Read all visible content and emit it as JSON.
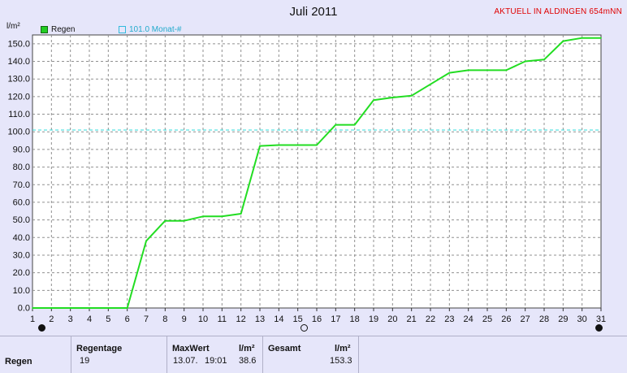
{
  "header": {
    "title": "Juli 2011",
    "status": "AKTUELL IN ALDINGEN 654mNN",
    "unit": "l/m²"
  },
  "legend": {
    "regen_label": "Regen",
    "avg_label": "101.0 Monat-#"
  },
  "colors": {
    "series": "#22dd22",
    "reference": "#33dddd",
    "grid": "#909090",
    "plot_bg": "#ffffff"
  },
  "chart_data": {
    "type": "line",
    "title": "Juli 2011",
    "ylabel": "l/m²",
    "xlim": [
      1,
      31
    ],
    "ylim": [
      0,
      155
    ],
    "x_ticks": [
      1,
      2,
      3,
      4,
      5,
      6,
      7,
      8,
      9,
      10,
      11,
      12,
      13,
      14,
      15,
      16,
      17,
      18,
      19,
      20,
      21,
      22,
      23,
      24,
      25,
      26,
      27,
      28,
      29,
      30,
      31
    ],
    "y_ticks": [
      0,
      10,
      20,
      30,
      40,
      50,
      60,
      70,
      80,
      90,
      100,
      110,
      120,
      130,
      140,
      150
    ],
    "y_tick_labels": [
      "0.0",
      "10.0",
      "20.0",
      "30.0",
      "40.0",
      "50.0",
      "60.0",
      "70.0",
      "80.0",
      "90.0",
      "100.0",
      "110.0",
      "120.0",
      "130.0",
      "140.0",
      "150.0"
    ],
    "grid": true,
    "series": [
      {
        "name": "Regen",
        "x": [
          1,
          2,
          3,
          4,
          5,
          6,
          7,
          8,
          9,
          10,
          11,
          12,
          13,
          14,
          15,
          16,
          17,
          18,
          19,
          20,
          21,
          22,
          23,
          24,
          25,
          26,
          27,
          28,
          29,
          30,
          31
        ],
        "y": [
          0,
          0,
          0,
          0,
          0,
          0,
          38,
          49.5,
          49.5,
          52,
          52,
          53.5,
          92,
          92.5,
          92.5,
          92.5,
          104,
          104,
          118,
          119.5,
          120.5,
          127,
          133.5,
          135,
          135,
          135,
          140,
          141,
          151.5,
          153.3,
          153.3
        ]
      }
    ],
    "reference_line": {
      "name": "101.0 Monat-#",
      "y": 101.0
    }
  },
  "table": {
    "row_label": "Regen",
    "regentage_header": "Regentage",
    "regentage_value": "19",
    "maxwert_header": "MaxWert",
    "maxwert_unit": "l/m²",
    "maxwert_date": "13.07.",
    "maxwert_time": "19:01",
    "maxwert_value": "38.6",
    "gesamt_header": "Gesamt",
    "gesamt_unit": "l/m²",
    "gesamt_value": "153.3"
  }
}
